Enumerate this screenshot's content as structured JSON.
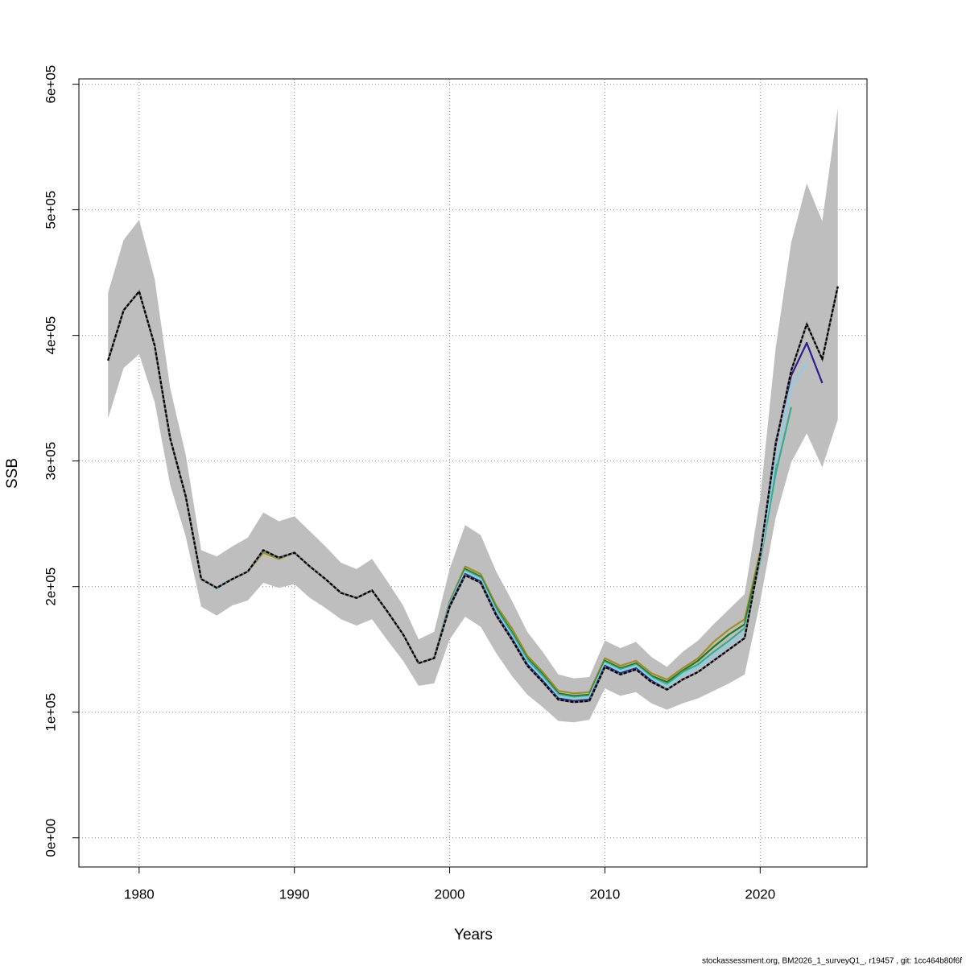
{
  "chart_data": {
    "type": "line",
    "xlabel": "Years",
    "ylabel": "SSB",
    "footer": "stockassessment.org, BM2026_1_surveyQ1_, r19457 , git: 1cc464b80f6f",
    "grid": true,
    "x": [
      1978,
      1979,
      1980,
      1981,
      1982,
      1983,
      1984,
      1985,
      1986,
      1987,
      1988,
      1989,
      1990,
      1991,
      1992,
      1993,
      1994,
      1995,
      1996,
      1997,
      1998,
      1999,
      2000,
      2001,
      2002,
      2003,
      2004,
      2005,
      2006,
      2007,
      2008,
      2009,
      2010,
      2011,
      2012,
      2013,
      2014,
      2015,
      2016,
      2017,
      2018,
      2019,
      2020,
      2021,
      2022,
      2023,
      2024,
      2025
    ],
    "xlim": [
      1976.12,
      2026.88
    ],
    "xticks": [
      1980,
      1990,
      2000,
      2010,
      2020
    ],
    "ylim": [
      -23240,
      604240
    ],
    "yticks": [
      {
        "value": 0,
        "label": "0e+00"
      },
      {
        "value": 100000,
        "label": "1e+05"
      },
      {
        "value": 200000,
        "label": "2e+05"
      },
      {
        "value": 300000,
        "label": "3e+05"
      },
      {
        "value": 400000,
        "label": "4e+05"
      },
      {
        "value": 500000,
        "label": "5e+05"
      },
      {
        "value": 600000,
        "label": "6e+05"
      }
    ],
    "band": {
      "color": "#bebebe",
      "upper": [
        434000,
        476000,
        492000,
        445000,
        358000,
        305000,
        229000,
        224000,
        232000,
        239000,
        259000,
        252000,
        256000,
        244000,
        232000,
        219000,
        214000,
        222000,
        204000,
        185000,
        158000,
        164000,
        214000,
        249000,
        241000,
        212000,
        189000,
        164000,
        148000,
        130000,
        127000,
        128000,
        157000,
        151000,
        156000,
        144000,
        136000,
        148000,
        157000,
        170000,
        182000,
        194000,
        270000,
        390000,
        474000,
        521000,
        491000,
        581000
      ],
      "lower": [
        334000,
        374000,
        385000,
        347000,
        281000,
        240000,
        184000,
        177000,
        185000,
        189000,
        203000,
        199000,
        202000,
        191000,
        183000,
        174000,
        169000,
        174000,
        157000,
        141000,
        121000,
        123000,
        158000,
        176000,
        168000,
        147000,
        129000,
        114000,
        104000,
        93000,
        92000,
        94000,
        119000,
        113000,
        116000,
        107000,
        102000,
        107000,
        111000,
        117000,
        123000,
        130000,
        188000,
        255000,
        299000,
        322000,
        295000,
        333000
      ]
    },
    "series": [
      {
        "color": "#a09020",
        "values": [
          380000,
          420000,
          435000,
          392000,
          318000,
          272000,
          206000,
          199000,
          206000,
          212000,
          227000,
          222000,
          227000,
          216000,
          206000,
          195000,
          191000,
          197000,
          180000,
          162000,
          139000,
          143000,
          188000,
          216000,
          210000,
          185000,
          167000,
          145000,
          132000,
          117000,
          115000,
          116000,
          143000,
          137000,
          141000,
          131000,
          126000,
          135000,
          143000,
          156000,
          166000,
          174000,
          228000,
          null,
          null,
          null,
          null,
          null
        ]
      },
      {
        "color": "#1a7a2a",
        "values": [
          380000,
          420000,
          435000,
          392000,
          318000,
          272000,
          206000,
          199000,
          206000,
          212000,
          229000,
          223000,
          227000,
          216000,
          206000,
          195000,
          191000,
          197000,
          180000,
          162000,
          139000,
          143000,
          187000,
          214000,
          208000,
          183000,
          164000,
          143000,
          130000,
          115000,
          113000,
          114000,
          141000,
          135000,
          139000,
          129000,
          124000,
          133000,
          141000,
          152000,
          162000,
          170000,
          225000,
          298000,
          null,
          null,
          null,
          null
        ]
      },
      {
        "color": "#3aaa8e",
        "values": [
          380000,
          420000,
          435000,
          392000,
          318000,
          272000,
          206000,
          199000,
          206000,
          212000,
          229000,
          223000,
          227000,
          216000,
          206000,
          195000,
          191000,
          197000,
          180000,
          162000,
          139000,
          143000,
          187000,
          213000,
          207000,
          182000,
          163000,
          142000,
          129000,
          114000,
          112000,
          113000,
          140000,
          134000,
          138000,
          128000,
          122000,
          132000,
          138000,
          148000,
          157000,
          167000,
          220000,
          290000,
          343000,
          null,
          null,
          null
        ]
      },
      {
        "color": "#87ceeb",
        "values": [
          380000,
          420000,
          435000,
          392000,
          318000,
          272000,
          206000,
          198000,
          206000,
          212000,
          229000,
          223000,
          227000,
          216000,
          206000,
          195000,
          191000,
          197000,
          180000,
          162000,
          139000,
          143000,
          186000,
          212000,
          206000,
          180000,
          161000,
          140000,
          127000,
          113000,
          111000,
          112000,
          139000,
          133000,
          137000,
          127000,
          121000,
          130000,
          136000,
          145000,
          154000,
          163000,
          222000,
          300000,
          360000,
          378000,
          null,
          null
        ]
      },
      {
        "color": "#2d1e8f",
        "values": [
          380000,
          420000,
          435000,
          392000,
          318000,
          272000,
          206000,
          199000,
          206000,
          212000,
          229000,
          223000,
          227000,
          216000,
          206000,
          195000,
          191000,
          197000,
          180000,
          162000,
          139000,
          143000,
          185000,
          210000,
          204000,
          178000,
          159000,
          138000,
          125000,
          111000,
          109000,
          110000,
          137000,
          131000,
          135000,
          125000,
          118000,
          126000,
          132000,
          141000,
          150000,
          159000,
          225000,
          315000,
          368000,
          394000,
          362000,
          null
        ]
      },
      {
        "color": "#000000",
        "dashed": true,
        "values": [
          380000,
          420000,
          435000,
          392000,
          318000,
          272000,
          206000,
          199000,
          206000,
          212000,
          229000,
          223000,
          227000,
          216000,
          206000,
          195000,
          191000,
          197000,
          180000,
          162000,
          139000,
          143000,
          184000,
          209000,
          203000,
          177000,
          158000,
          137000,
          124000,
          110000,
          108000,
          109000,
          136000,
          130000,
          134000,
          124000,
          118000,
          126000,
          132000,
          141000,
          150000,
          159000,
          225000,
          313000,
          372000,
          409000,
          381000,
          439000
        ]
      }
    ]
  }
}
